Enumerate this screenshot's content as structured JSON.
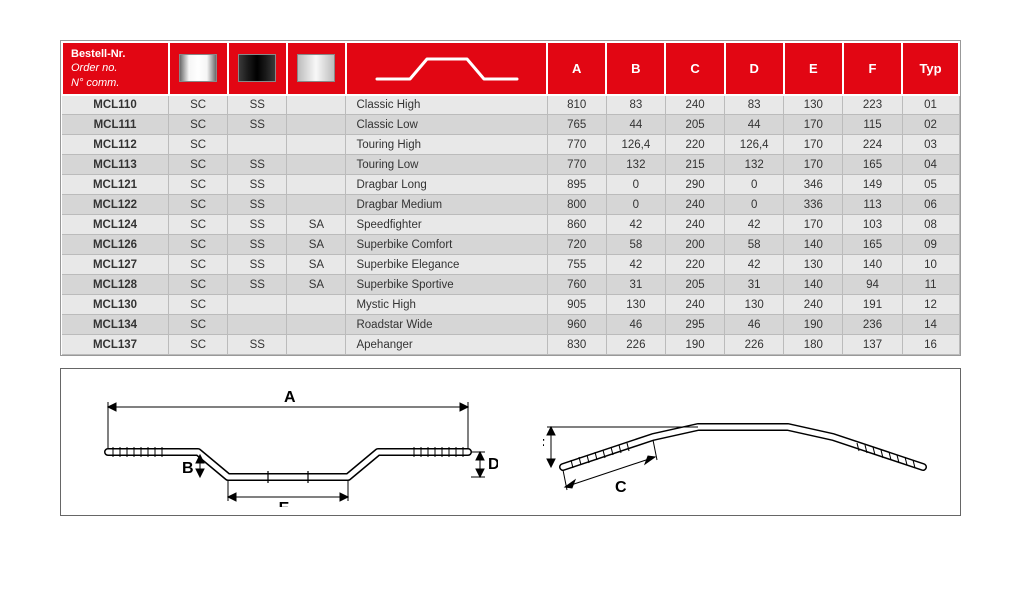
{
  "header": {
    "order_line1": "Bestell-Nr.",
    "order_line2": "Order no.",
    "order_line3": "N° comm.",
    "A": "A",
    "B": "B",
    "C": "C",
    "D": "D",
    "E": "E",
    "F": "F",
    "typ": "Typ"
  },
  "col_widths": {
    "order": 90,
    "finish": 50,
    "name": 170,
    "dim": 50,
    "typ": 48
  },
  "colors": {
    "header_bg": "#e20613",
    "header_text": "#ffffff",
    "row_even": "#e8e8e8",
    "row_odd": "#d6d6d6",
    "border": "#bbbbbb"
  },
  "finish_codes": {
    "sc": "SC",
    "ss": "SS",
    "sa": "SA"
  },
  "rows": [
    {
      "order": "MCL110",
      "sc": "SC",
      "ss": "SS",
      "sa": "",
      "name": "Classic High",
      "A": "810",
      "B": "83",
      "C": "240",
      "D": "83",
      "E": "130",
      "F": "223",
      "typ": "01"
    },
    {
      "order": "MCL111",
      "sc": "SC",
      "ss": "SS",
      "sa": "",
      "name": "Classic Low",
      "A": "765",
      "B": "44",
      "C": "205",
      "D": "44",
      "E": "170",
      "F": "115",
      "typ": "02"
    },
    {
      "order": "MCL112",
      "sc": "SC",
      "ss": "",
      "sa": "",
      "name": "Touring High",
      "A": "770",
      "B": "126,4",
      "C": "220",
      "D": "126,4",
      "E": "170",
      "F": "224",
      "typ": "03"
    },
    {
      "order": "MCL113",
      "sc": "SC",
      "ss": "SS",
      "sa": "",
      "name": "Touring Low",
      "A": "770",
      "B": "132",
      "C": "215",
      "D": "132",
      "E": "170",
      "F": "165",
      "typ": "04"
    },
    {
      "order": "MCL121",
      "sc": "SC",
      "ss": "SS",
      "sa": "",
      "name": "Dragbar Long",
      "A": "895",
      "B": "0",
      "C": "290",
      "D": "0",
      "E": "346",
      "F": "149",
      "typ": "05"
    },
    {
      "order": "MCL122",
      "sc": "SC",
      "ss": "SS",
      "sa": "",
      "name": "Dragbar Medium",
      "A": "800",
      "B": "0",
      "C": "240",
      "D": "0",
      "E": "336",
      "F": "113",
      "typ": "06"
    },
    {
      "order": "MCL124",
      "sc": "SC",
      "ss": "SS",
      "sa": "SA",
      "name": "Speedfighter",
      "A": "860",
      "B": "42",
      "C": "240",
      "D": "42",
      "E": "170",
      "F": "103",
      "typ": "08"
    },
    {
      "order": "MCL126",
      "sc": "SC",
      "ss": "SS",
      "sa": "SA",
      "name": "Superbike Comfort",
      "A": "720",
      "B": "58",
      "C": "200",
      "D": "58",
      "E": "140",
      "F": "165",
      "typ": "09"
    },
    {
      "order": "MCL127",
      "sc": "SC",
      "ss": "SS",
      "sa": "SA",
      "name": "Superbike Elegance",
      "A": "755",
      "B": "42",
      "C": "220",
      "D": "42",
      "E": "130",
      "F": "140",
      "typ": "10"
    },
    {
      "order": "MCL128",
      "sc": "SC",
      "ss": "SS",
      "sa": "SA",
      "name": "Superbike Sportive",
      "A": "760",
      "B": "31",
      "C": "205",
      "D": "31",
      "E": "140",
      "F": "94",
      "typ": "11"
    },
    {
      "order": "MCL130",
      "sc": "SC",
      "ss": "",
      "sa": "",
      "name": "Mystic High",
      "A": "905",
      "B": "130",
      "C": "240",
      "D": "130",
      "E": "240",
      "F": "191",
      "typ": "12"
    },
    {
      "order": "MCL134",
      "sc": "SC",
      "ss": "",
      "sa": "",
      "name": "Roadstar Wide",
      "A": "960",
      "B": "46",
      "C": "295",
      "D": "46",
      "E": "190",
      "F": "236",
      "typ": "14"
    },
    {
      "order": "MCL137",
      "sc": "SC",
      "ss": "SS",
      "sa": "",
      "name": "Apehanger",
      "A": "830",
      "B": "226",
      "C": "190",
      "D": "226",
      "E": "180",
      "F": "137",
      "typ": "16"
    }
  ],
  "diagram_labels": {
    "A": "A",
    "B": "B",
    "C": "C",
    "D": "D",
    "E": "E",
    "F": "F"
  }
}
